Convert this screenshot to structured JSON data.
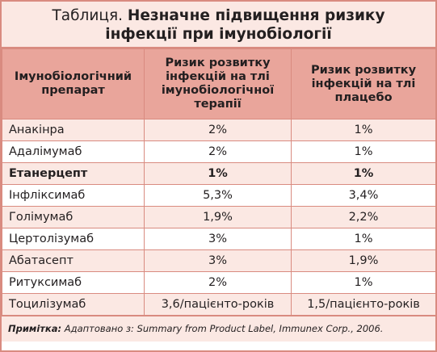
{
  "title": {
    "prefix": "Таблиця.",
    "main": "Незначне підвищення ризику інфекції при імунобіології"
  },
  "table": {
    "header": [
      "Імунобіологічний препарат",
      "Ризик розвитку інфекцій на тлі імунобіологічної терапії",
      "Ризик розвитку інфекцій на тлі плацебо"
    ],
    "rows": [
      [
        "Анакінра",
        "2%",
        "1%"
      ],
      [
        "Адалімумаб",
        "2%",
        "1%"
      ],
      [
        "Етанерцепт",
        "1%",
        "1%"
      ],
      [
        "Інфліксимаб",
        "5,3%",
        "3,4%"
      ],
      [
        "Голімумаб",
        "1,9%",
        "2,2%"
      ],
      [
        "Цертолізумаб",
        "3%",
        "1%"
      ],
      [
        "Абатасепт",
        "3%",
        "1,9%"
      ],
      [
        "Ритуксимаб",
        "2%",
        "1%"
      ],
      [
        "Тоцилізумаб",
        "3,6/пацієнто-років",
        "1,5/пацієнто-років"
      ]
    ],
    "bold_row": 2
  },
  "note": {
    "label": "Примітка:",
    "text": "Адаптовано з: Summary from Product Label, Immunex Corp., 2006."
  }
}
